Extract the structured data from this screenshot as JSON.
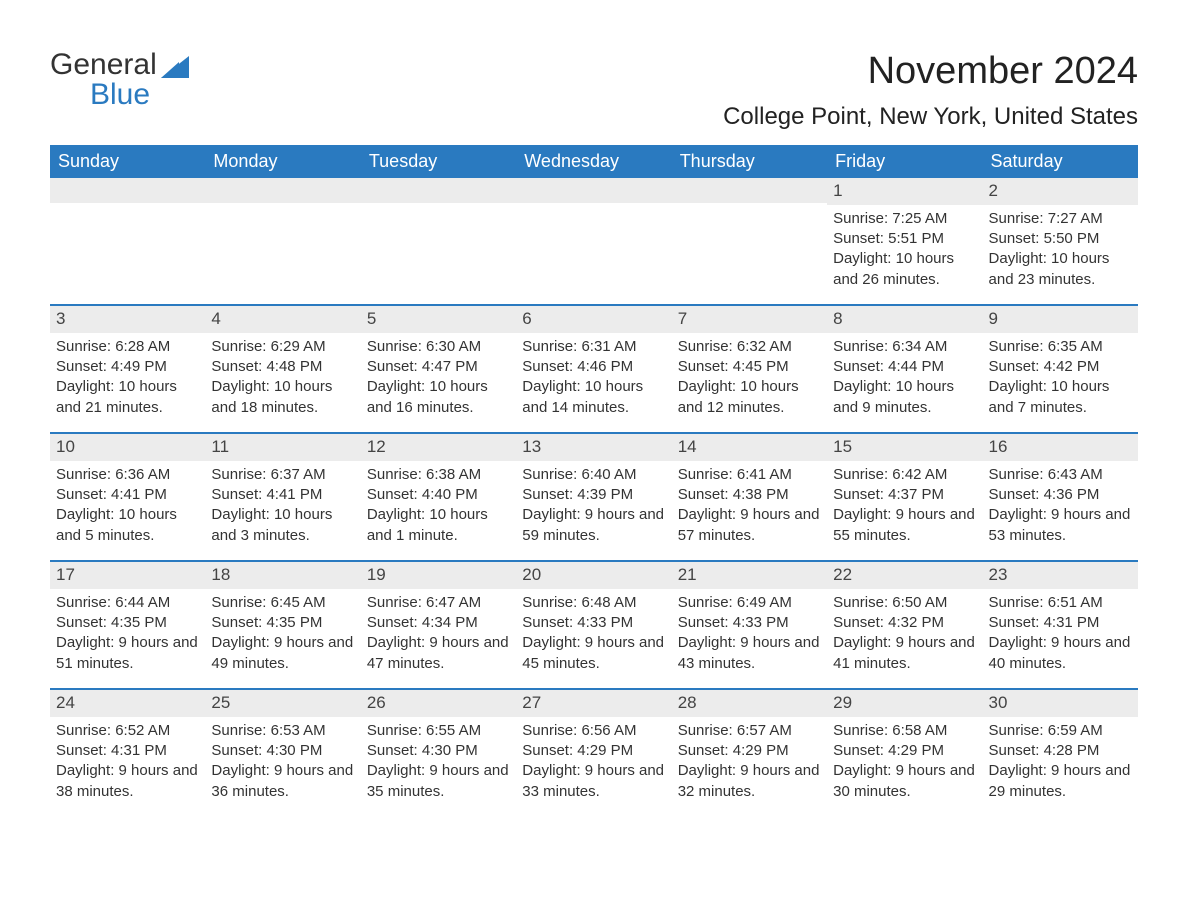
{
  "brand": {
    "word1": "General",
    "word2": "Blue"
  },
  "title": {
    "month_year": "November 2024",
    "location": "College Point, New York, United States"
  },
  "colors": {
    "header_bg": "#2a7ac0",
    "header_text": "#ffffff",
    "daynum_bg": "#ececec",
    "week_border": "#2a7ac0",
    "text": "#333333",
    "brand_accent": "#2a7ac0",
    "background": "#ffffff"
  },
  "typography": {
    "title_fontsize": 38,
    "location_fontsize": 24,
    "dow_fontsize": 18,
    "body_fontsize": 15,
    "daynum_fontsize": 17,
    "logo_fontsize": 30
  },
  "days_of_week": [
    "Sunday",
    "Monday",
    "Tuesday",
    "Wednesday",
    "Thursday",
    "Friday",
    "Saturday"
  ],
  "label": {
    "sunrise": "Sunrise:",
    "sunset": "Sunset:",
    "daylight": "Daylight:"
  },
  "weeks": [
    [
      null,
      null,
      null,
      null,
      null,
      {
        "n": "1",
        "sunrise": "7:25 AM",
        "sunset": "5:51 PM",
        "daylight": "10 hours and 26 minutes."
      },
      {
        "n": "2",
        "sunrise": "7:27 AM",
        "sunset": "5:50 PM",
        "daylight": "10 hours and 23 minutes."
      }
    ],
    [
      {
        "n": "3",
        "sunrise": "6:28 AM",
        "sunset": "4:49 PM",
        "daylight": "10 hours and 21 minutes."
      },
      {
        "n": "4",
        "sunrise": "6:29 AM",
        "sunset": "4:48 PM",
        "daylight": "10 hours and 18 minutes."
      },
      {
        "n": "5",
        "sunrise": "6:30 AM",
        "sunset": "4:47 PM",
        "daylight": "10 hours and 16 minutes."
      },
      {
        "n": "6",
        "sunrise": "6:31 AM",
        "sunset": "4:46 PM",
        "daylight": "10 hours and 14 minutes."
      },
      {
        "n": "7",
        "sunrise": "6:32 AM",
        "sunset": "4:45 PM",
        "daylight": "10 hours and 12 minutes."
      },
      {
        "n": "8",
        "sunrise": "6:34 AM",
        "sunset": "4:44 PM",
        "daylight": "10 hours and 9 minutes."
      },
      {
        "n": "9",
        "sunrise": "6:35 AM",
        "sunset": "4:42 PM",
        "daylight": "10 hours and 7 minutes."
      }
    ],
    [
      {
        "n": "10",
        "sunrise": "6:36 AM",
        "sunset": "4:41 PM",
        "daylight": "10 hours and 5 minutes."
      },
      {
        "n": "11",
        "sunrise": "6:37 AM",
        "sunset": "4:41 PM",
        "daylight": "10 hours and 3 minutes."
      },
      {
        "n": "12",
        "sunrise": "6:38 AM",
        "sunset": "4:40 PM",
        "daylight": "10 hours and 1 minute."
      },
      {
        "n": "13",
        "sunrise": "6:40 AM",
        "sunset": "4:39 PM",
        "daylight": "9 hours and 59 minutes."
      },
      {
        "n": "14",
        "sunrise": "6:41 AM",
        "sunset": "4:38 PM",
        "daylight": "9 hours and 57 minutes."
      },
      {
        "n": "15",
        "sunrise": "6:42 AM",
        "sunset": "4:37 PM",
        "daylight": "9 hours and 55 minutes."
      },
      {
        "n": "16",
        "sunrise": "6:43 AM",
        "sunset": "4:36 PM",
        "daylight": "9 hours and 53 minutes."
      }
    ],
    [
      {
        "n": "17",
        "sunrise": "6:44 AM",
        "sunset": "4:35 PM",
        "daylight": "9 hours and 51 minutes."
      },
      {
        "n": "18",
        "sunrise": "6:45 AM",
        "sunset": "4:35 PM",
        "daylight": "9 hours and 49 minutes."
      },
      {
        "n": "19",
        "sunrise": "6:47 AM",
        "sunset": "4:34 PM",
        "daylight": "9 hours and 47 minutes."
      },
      {
        "n": "20",
        "sunrise": "6:48 AM",
        "sunset": "4:33 PM",
        "daylight": "9 hours and 45 minutes."
      },
      {
        "n": "21",
        "sunrise": "6:49 AM",
        "sunset": "4:33 PM",
        "daylight": "9 hours and 43 minutes."
      },
      {
        "n": "22",
        "sunrise": "6:50 AM",
        "sunset": "4:32 PM",
        "daylight": "9 hours and 41 minutes."
      },
      {
        "n": "23",
        "sunrise": "6:51 AM",
        "sunset": "4:31 PM",
        "daylight": "9 hours and 40 minutes."
      }
    ],
    [
      {
        "n": "24",
        "sunrise": "6:52 AM",
        "sunset": "4:31 PM",
        "daylight": "9 hours and 38 minutes."
      },
      {
        "n": "25",
        "sunrise": "6:53 AM",
        "sunset": "4:30 PM",
        "daylight": "9 hours and 36 minutes."
      },
      {
        "n": "26",
        "sunrise": "6:55 AM",
        "sunset": "4:30 PM",
        "daylight": "9 hours and 35 minutes."
      },
      {
        "n": "27",
        "sunrise": "6:56 AM",
        "sunset": "4:29 PM",
        "daylight": "9 hours and 33 minutes."
      },
      {
        "n": "28",
        "sunrise": "6:57 AM",
        "sunset": "4:29 PM",
        "daylight": "9 hours and 32 minutes."
      },
      {
        "n": "29",
        "sunrise": "6:58 AM",
        "sunset": "4:29 PM",
        "daylight": "9 hours and 30 minutes."
      },
      {
        "n": "30",
        "sunrise": "6:59 AM",
        "sunset": "4:28 PM",
        "daylight": "9 hours and 29 minutes."
      }
    ]
  ]
}
